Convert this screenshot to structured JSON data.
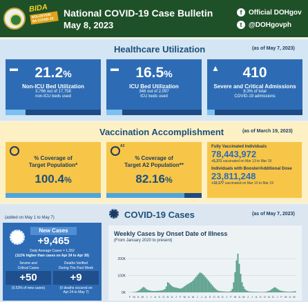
{
  "header": {
    "title": "National COVID-19 Case Bulletin",
    "date": "May 8, 2023",
    "logo_text": "BIDA",
    "logo_sub": "SOLUSYON SA COVID-19",
    "social": [
      {
        "icon": "facebook-icon",
        "label": "Official DOHgov"
      },
      {
        "icon": "twitter-icon",
        "label": "@DOHgovph"
      }
    ]
  },
  "healthcare": {
    "title": "Healthcare Utilization",
    "as_of": "(as of May 7, 2023)",
    "cards": [
      {
        "value": "21.2",
        "unit": "%",
        "label": "Non-ICU Bed Utilization",
        "sub1": "3,766 out of 17,758",
        "sub2": "non-ICU beds used",
        "fill": 0.212
      },
      {
        "value": "16.5",
        "unit": "%",
        "label": "ICU Bed Utilization",
        "sub1": "346 out of 2,097",
        "sub2": "ICU beds used",
        "fill": 0.165
      },
      {
        "value": "410",
        "unit": "",
        "label": "Severe and Critical Admissions",
        "sub1": "8.3% of total",
        "sub2": "COVID-19 admissions",
        "fill": 0.083
      }
    ]
  },
  "vaccination": {
    "title": "Vaccination Accomplishment",
    "as_of": "(as of March 19, 2023)",
    "cards": [
      {
        "label1": "% Coverage of",
        "label2": "Target Population*",
        "value": "100.4",
        "unit": "%",
        "fill": 1.0
      },
      {
        "label1": "% Coverage of",
        "label2": "Target A2 Population**",
        "value": "82.16",
        "unit": "%",
        "fill": 0.8216,
        "badge": "A2"
      }
    ],
    "fully_vaccinated": {
      "title": "Fully Vaccinated Individuals",
      "value": "78,443,972",
      "delta": "+5,371",
      "note": " vaccinated on Mar 13 to Mar 19"
    },
    "booster": {
      "title": "Individuals with Booster/Additional Dose",
      "value": "23,811,248",
      "delta": "+10,177",
      "note": " vaccinated on Mar 13 to Mar 19"
    }
  },
  "cases": {
    "title": "COVID-19 Cases",
    "as_of": "(as of May 7, 2023)",
    "added_note": "(added on May 1 to May 7)",
    "new_cases_label": "New Cases",
    "new_cases": "+9,465",
    "avg1": "Daily Average Cases = 1,352",
    "avg2": "(112% higher than cases on Apr 24 to Apr 30)",
    "severe_label1": "Severe and",
    "severe_label2": "Critical Cases",
    "severe_value": "+50",
    "severe_note": "(0.53% of new cases)",
    "deaths_label1": "Deaths Verified",
    "deaths_label2": "During The Past Week",
    "deaths_value": "+9",
    "deaths_note1": "(0 deaths occured on",
    "deaths_note2": "Apr 24 to May 7)"
  },
  "chart_data": {
    "type": "bar",
    "title": "Weekly Cases by Onset Date of Illness",
    "subtitle": "(From January 2020 to present)",
    "yticks": [
      "200K",
      "100K",
      "0K"
    ],
    "ylim": [
      0,
      250000
    ],
    "xticks": [
      "F",
      "M",
      "A",
      "M",
      "J",
      "J",
      "A",
      "S",
      "O",
      "N",
      "D",
      "J",
      "F",
      "M",
      "A",
      "M",
      "J",
      "J",
      "A",
      "S",
      "O",
      "N",
      "D",
      "J",
      "F",
      "M",
      "A",
      "M",
      "J",
      "J",
      "A",
      "S",
      "O",
      "N",
      "D",
      "J",
      "F",
      "M",
      "A",
      "M"
    ],
    "values": [
      100,
      200,
      500,
      1500,
      2500,
      3000,
      6000,
      9000,
      14000,
      20000,
      28000,
      32000,
      26000,
      18000,
      14000,
      12000,
      10000,
      9000,
      8000,
      8500,
      9000,
      9500,
      10000,
      11000,
      12000,
      15000,
      20000,
      35000,
      60000,
      55000,
      45000,
      38000,
      32000,
      30000,
      28000,
      26000,
      24000,
      22000,
      25000,
      30000,
      36000,
      42000,
      48000,
      52000,
      58000,
      62000,
      70000,
      80000,
      90000,
      100000,
      110000,
      118000,
      115000,
      108000,
      100000,
      90000,
      80000,
      70000,
      60000,
      50000,
      40000,
      30000,
      22000,
      15000,
      10000,
      8000,
      7000,
      6000,
      5500,
      5000,
      4500,
      4000,
      5000,
      8000,
      20000,
      60000,
      120000,
      190000,
      230000,
      170000,
      110000,
      60000,
      35000,
      20000,
      12000,
      8000,
      6000,
      5000,
      4500,
      4000,
      3800,
      3500,
      3200,
      3000,
      2800,
      2600,
      2500,
      3000,
      4000,
      6000,
      9000,
      12000,
      18000,
      24000,
      30000,
      28000,
      22000,
      16000,
      12000,
      9000,
      7000,
      6000,
      5000,
      4500,
      4000,
      3800,
      4000,
      5000,
      6000,
      6500
    ]
  }
}
